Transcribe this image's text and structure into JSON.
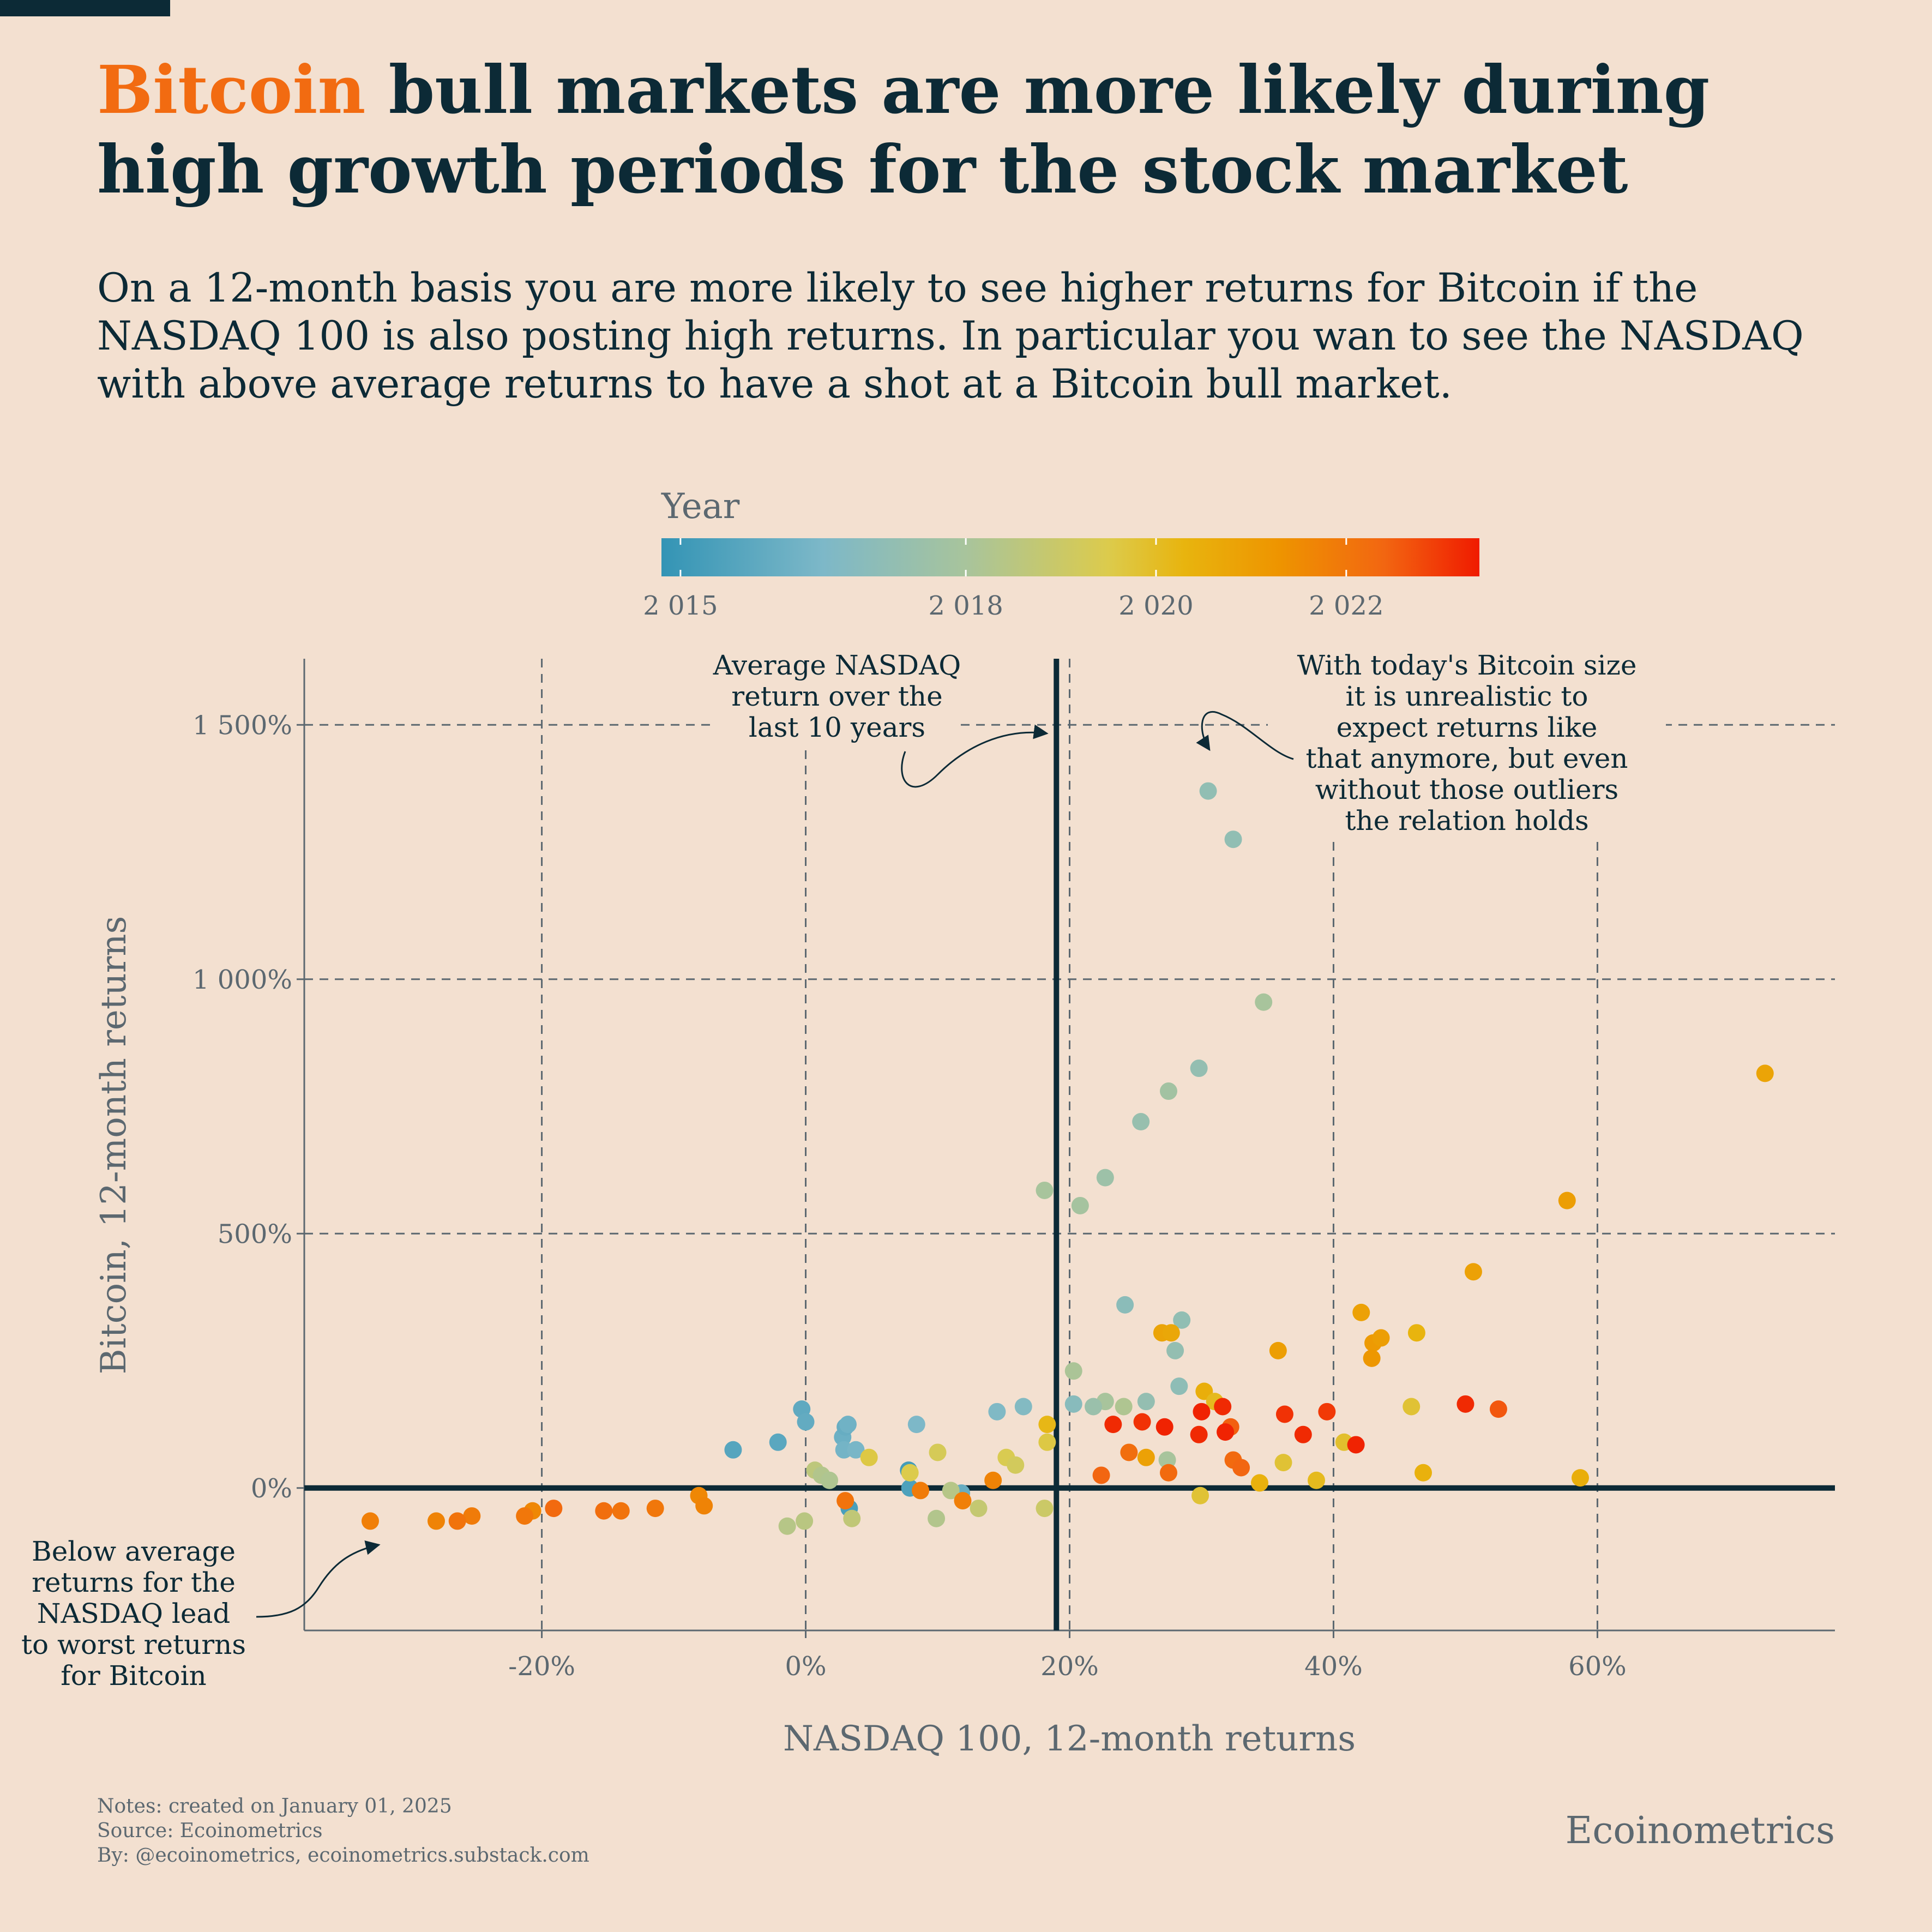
{
  "title": {
    "accent": "Bitcoin",
    "rest": " bull markets are more likely during high growth periods for the stock market"
  },
  "subtitle": "On a 12-month basis you are more likely to see higher returns for Bitcoin if the NASDAQ 100 is also posting high returns. In particular you wan to see the NASDAQ with above average returns to have a shot at a Bitcoin bull market.",
  "footer": {
    "notes": "Notes: created on January 01, 2025",
    "source": "Source: Ecoinometrics",
    "by": "By: @ecoinometrics, ecoinometrics.substack.com"
  },
  "brand": "Ecoinometrics",
  "colors": {
    "background": "#f3e0d0",
    "ink": "#0c2a36",
    "accent": "#f26b11",
    "muted": "#5c6870"
  },
  "chart_data": {
    "type": "scatter",
    "xlabel": "NASDAQ 100, 12-month returns",
    "ylabel": "Bitcoin, 12-month returns",
    "xlim": [
      -38,
      78
    ],
    "ylim": [
      -280,
      1630
    ],
    "xticks": [
      -20,
      0,
      20,
      40,
      60
    ],
    "xtick_labels": [
      "-20%",
      "0%",
      "20%",
      "40%",
      "60%"
    ],
    "yticks": [
      0,
      500,
      1000,
      1500
    ],
    "ytick_labels": [
      "0%",
      "500%",
      "1 000%",
      "1 500%"
    ],
    "grid": "dashed at ticks",
    "average_nasdaq_return": 19,
    "colorbar": {
      "title": "Year",
      "range": [
        2014.8,
        2023.4
      ],
      "ticks": [
        2015,
        2018,
        2020,
        2022
      ],
      "tick_labels": [
        "2 015",
        "2 018",
        "2 020",
        "2 022"
      ],
      "stops": [
        {
          "year": 2014.8,
          "color": "#3394b5"
        },
        {
          "year": 2016.5,
          "color": "#7db8c8"
        },
        {
          "year": 2018,
          "color": "#a8c49c"
        },
        {
          "year": 2019.5,
          "color": "#dccb4c"
        },
        {
          "year": 2020.3,
          "color": "#e8b40e"
        },
        {
          "year": 2021.3,
          "color": "#ee9400"
        },
        {
          "year": 2022.4,
          "color": "#f26611"
        },
        {
          "year": 2023.4,
          "color": "#f01b00"
        }
      ]
    },
    "annotations": [
      {
        "text": [
          "Average NASDAQ",
          "return over the",
          "last 10 years"
        ]
      },
      {
        "text": [
          "With today's Bitcoin size",
          "it is unrealistic to",
          "expect returns like",
          "that anymore, but even",
          "without those outliers",
          "the relation holds"
        ]
      },
      {
        "text": [
          "Below average",
          "returns for the",
          "NASDAQ lead",
          "to worst returns",
          "for Bitcoin"
        ]
      }
    ],
    "points": [
      {
        "x": -5.5,
        "y": 75,
        "year": 2015.6
      },
      {
        "x": -2.1,
        "y": 90,
        "year": 2015.7
      },
      {
        "x": -0.3,
        "y": 155,
        "year": 2015.8
      },
      {
        "x": 0,
        "y": 130,
        "year": 2015.9
      },
      {
        "x": 2.8,
        "y": 100,
        "year": 2016.1
      },
      {
        "x": 3.0,
        "y": 120,
        "year": 2016.0
      },
      {
        "x": 3.2,
        "y": 125,
        "year": 2016.2
      },
      {
        "x": 2.9,
        "y": 75,
        "year": 2016.3
      },
      {
        "x": 3.8,
        "y": 75,
        "year": 2016.4
      },
      {
        "x": 3.3,
        "y": -40,
        "year": 2015.3
      },
      {
        "x": 7.8,
        "y": 35,
        "year": 2015.2
      },
      {
        "x": 8.4,
        "y": 125,
        "year": 2016.5
      },
      {
        "x": 7.9,
        "y": 0,
        "year": 2015.4
      },
      {
        "x": 14.5,
        "y": 150,
        "year": 2016.6
      },
      {
        "x": 16.5,
        "y": 160,
        "year": 2016.7
      },
      {
        "x": 11.8,
        "y": -10,
        "year": 2016.0
      },
      {
        "x": 18.1,
        "y": 585,
        "year": 2018.0
      },
      {
        "x": 20.8,
        "y": 555,
        "year": 2017.9
      },
      {
        "x": 22.7,
        "y": 610,
        "year": 2017.6
      },
      {
        "x": 25.4,
        "y": 720,
        "year": 2017.4
      },
      {
        "x": 27.5,
        "y": 780,
        "year": 2017.8
      },
      {
        "x": 29.8,
        "y": 825,
        "year": 2017.3
      },
      {
        "x": 30.5,
        "y": 1370,
        "year": 2017.2
      },
      {
        "x": 32.4,
        "y": 1275,
        "year": 2017.2
      },
      {
        "x": 34.7,
        "y": 955,
        "year": 2018.0
      },
      {
        "x": 24.2,
        "y": 360,
        "year": 2017.0
      },
      {
        "x": 28.5,
        "y": 330,
        "year": 2017.2
      },
      {
        "x": 28.0,
        "y": 270,
        "year": 2017.3
      },
      {
        "x": 28.3,
        "y": 200,
        "year": 2017.1
      },
      {
        "x": 20.3,
        "y": 230,
        "year": 2018.1
      },
      {
        "x": 20.3,
        "y": 165,
        "year": 2016.9
      },
      {
        "x": 22.7,
        "y": 170,
        "year": 2018.0
      },
      {
        "x": 24.1,
        "y": 160,
        "year": 2018.2
      },
      {
        "x": 25.8,
        "y": 170,
        "year": 2017.3
      },
      {
        "x": 21.8,
        "y": 160,
        "year": 2017.5
      },
      {
        "x": 27.4,
        "y": 55,
        "year": 2018.0
      },
      {
        "x": 0.7,
        "y": 35,
        "year": 2018.6
      },
      {
        "x": 1.2,
        "y": 25,
        "year": 2018.3
      },
      {
        "x": 1.8,
        "y": 15,
        "year": 2018.2
      },
      {
        "x": -1.4,
        "y": -75,
        "year": 2018.4
      },
      {
        "x": -0.1,
        "y": -65,
        "year": 2018.5
      },
      {
        "x": 3.5,
        "y": -60,
        "year": 2018.7
      },
      {
        "x": 9.9,
        "y": -60,
        "year": 2018.3
      },
      {
        "x": 11.0,
        "y": -5,
        "year": 2018.4
      },
      {
        "x": 13.1,
        "y": -40,
        "year": 2018.8
      },
      {
        "x": 18.1,
        "y": -40,
        "year": 2019.0
      },
      {
        "x": 4.8,
        "y": 60,
        "year": 2019.6
      },
      {
        "x": 10.0,
        "y": 70,
        "year": 2019.3
      },
      {
        "x": 7.9,
        "y": 30,
        "year": 2019.5
      },
      {
        "x": 15.2,
        "y": 60,
        "year": 2019.4
      },
      {
        "x": 15.9,
        "y": 45,
        "year": 2019.2
      },
      {
        "x": 18.3,
        "y": 90,
        "year": 2019.6
      },
      {
        "x": 18.3,
        "y": 125,
        "year": 2020.2
      },
      {
        "x": 29.9,
        "y": -15,
        "year": 2019.8
      },
      {
        "x": 30.2,
        "y": 190,
        "year": 2020.5
      },
      {
        "x": 31.0,
        "y": 170,
        "year": 2020.1
      },
      {
        "x": 34.4,
        "y": 10,
        "year": 2020.4
      },
      {
        "x": 36.2,
        "y": 50,
        "year": 2019.8
      },
      {
        "x": 38.7,
        "y": 15,
        "year": 2020.1
      },
      {
        "x": 40.8,
        "y": 90,
        "year": 2019.9
      },
      {
        "x": 45.9,
        "y": 160,
        "year": 2019.8
      },
      {
        "x": 46.3,
        "y": 305,
        "year": 2020.3
      },
      {
        "x": 46.8,
        "y": 30,
        "year": 2020.4
      },
      {
        "x": 58.7,
        "y": 20,
        "year": 2020.5
      },
      {
        "x": 27.0,
        "y": 305,
        "year": 2020.8
      },
      {
        "x": 27.7,
        "y": 305,
        "year": 2020.7
      },
      {
        "x": 25.8,
        "y": 60,
        "year": 2020.9
      },
      {
        "x": 35.8,
        "y": 270,
        "year": 2021.0
      },
      {
        "x": 42.1,
        "y": 345,
        "year": 2020.9
      },
      {
        "x": 43.0,
        "y": 285,
        "year": 2021.1
      },
      {
        "x": 43.6,
        "y": 295,
        "year": 2021.0
      },
      {
        "x": 42.9,
        "y": 255,
        "year": 2021.2
      },
      {
        "x": 50.6,
        "y": 425,
        "year": 2020.9
      },
      {
        "x": 57.7,
        "y": 565,
        "year": 2021.0
      },
      {
        "x": 72.7,
        "y": 815,
        "year": 2020.8
      },
      {
        "x": 52.5,
        "y": 155,
        "year": 2022.6
      },
      {
        "x": 50.0,
        "y": 165,
        "year": 2023.2
      },
      {
        "x": 24.5,
        "y": 70,
        "year": 2022.2
      },
      {
        "x": 22.4,
        "y": 25,
        "year": 2022.4
      },
      {
        "x": 27.5,
        "y": 30,
        "year": 2022.3
      },
      {
        "x": 32.2,
        "y": 120,
        "year": 2022.5
      },
      {
        "x": 32.4,
        "y": 55,
        "year": 2022.3
      },
      {
        "x": 33.0,
        "y": 40,
        "year": 2022.4
      },
      {
        "x": 14.2,
        "y": 15,
        "year": 2021.7
      },
      {
        "x": 11.9,
        "y": -25,
        "year": 2021.8
      },
      {
        "x": 8.7,
        "y": -5,
        "year": 2021.9
      },
      {
        "x": 3.0,
        "y": -25,
        "year": 2022.1
      },
      {
        "x": -8.1,
        "y": -15,
        "year": 2021.6
      },
      {
        "x": -7.7,
        "y": -35,
        "year": 2021.7
      },
      {
        "x": -11.4,
        "y": -40,
        "year": 2022.0
      },
      {
        "x": -14.0,
        "y": -45,
        "year": 2022.1
      },
      {
        "x": -15.3,
        "y": -45,
        "year": 2022.2
      },
      {
        "x": -19.1,
        "y": -40,
        "year": 2022.3
      },
      {
        "x": -20.7,
        "y": -45,
        "year": 2021.6
      },
      {
        "x": -21.3,
        "y": -55,
        "year": 2022.0
      },
      {
        "x": -25.3,
        "y": -55,
        "year": 2021.9
      },
      {
        "x": -26.4,
        "y": -65,
        "year": 2022.1
      },
      {
        "x": -28.0,
        "y": -65,
        "year": 2021.7
      },
      {
        "x": -33.0,
        "y": -65,
        "year": 2021.8
      },
      {
        "x": 23.3,
        "y": 125,
        "year": 2023.2
      },
      {
        "x": 25.5,
        "y": 130,
        "year": 2023.1
      },
      {
        "x": 27.2,
        "y": 120,
        "year": 2023.3
      },
      {
        "x": 29.8,
        "y": 105,
        "year": 2023.2
      },
      {
        "x": 30.0,
        "y": 150,
        "year": 2023.3
      },
      {
        "x": 31.6,
        "y": 160,
        "year": 2023.2
      },
      {
        "x": 31.8,
        "y": 110,
        "year": 2023.3
      },
      {
        "x": 36.3,
        "y": 145,
        "year": 2023.1
      },
      {
        "x": 37.7,
        "y": 105,
        "year": 2023.2
      },
      {
        "x": 39.5,
        "y": 150,
        "year": 2023.0
      },
      {
        "x": 41.7,
        "y": 85,
        "year": 2023.3
      }
    ]
  }
}
